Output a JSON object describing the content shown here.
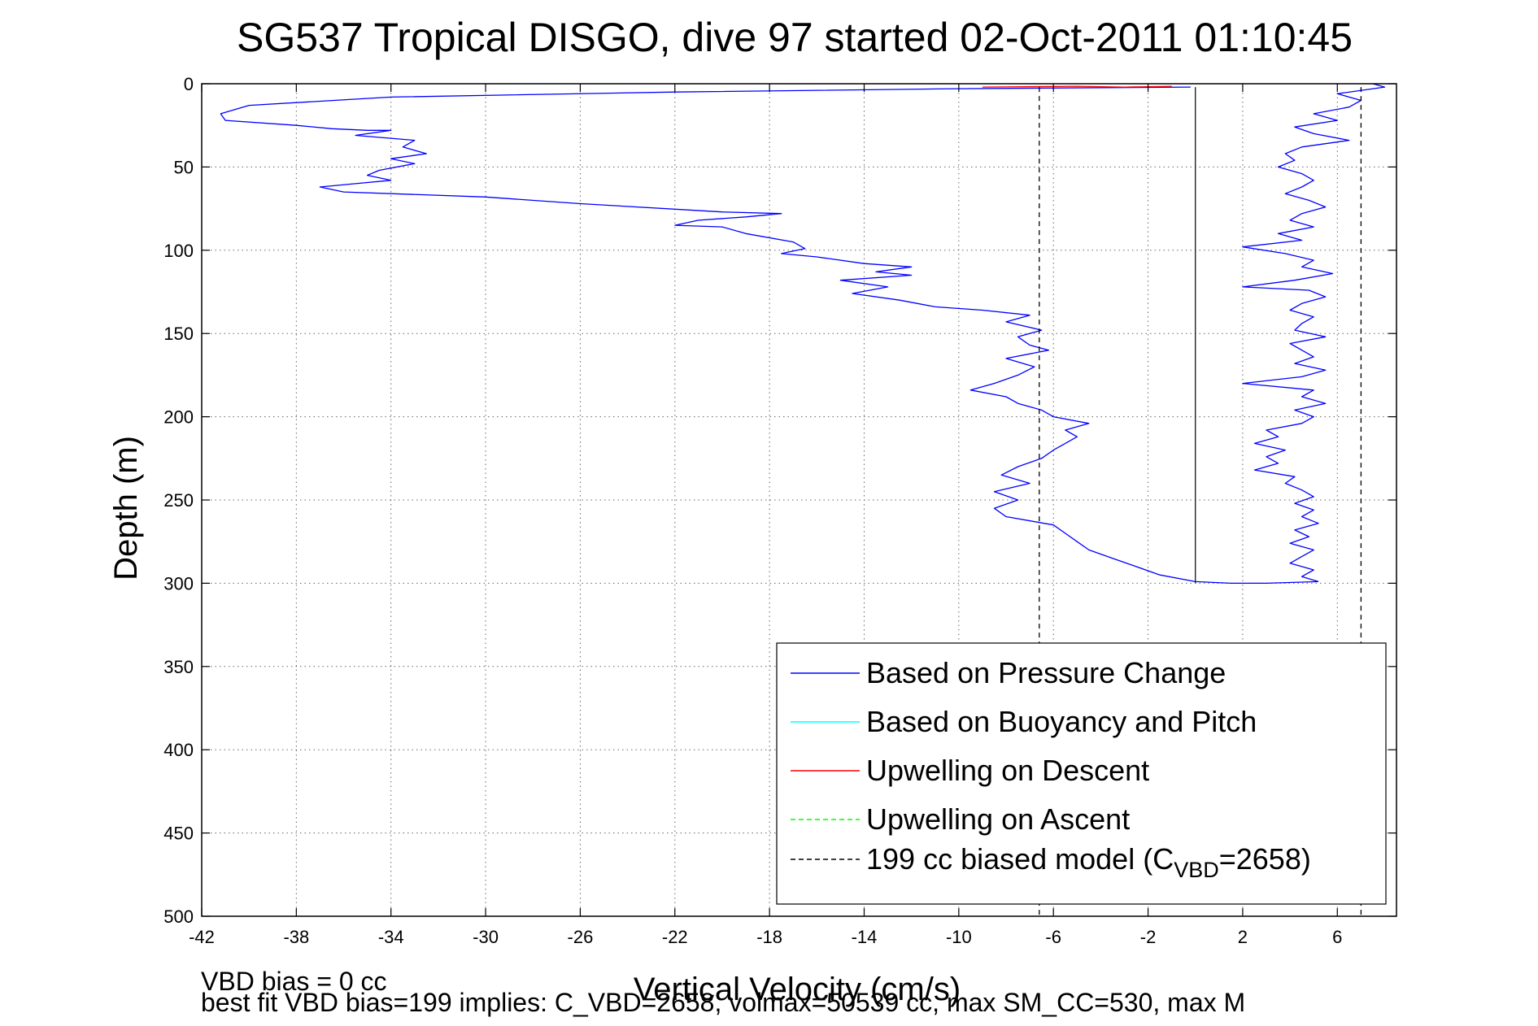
{
  "chart_data": {
    "type": "line",
    "title": "SG537 Tropical DISGO, dive 97 started 02-Oct-2011 01:10:45",
    "xlabel": "Vertical Velocity (cm/s)",
    "ylabel": "Depth (m)",
    "xlim": [
      -42,
      8.5
    ],
    "ylim": [
      500,
      0
    ],
    "y_reversed": true,
    "grid": true,
    "grid_style": "dotted",
    "xticks": [
      -42,
      -38,
      -34,
      -30,
      -26,
      -22,
      -18,
      -14,
      -10,
      -6,
      -2,
      2,
      6
    ],
    "xtick_labels": [
      "-42",
      "-38",
      "-34",
      "-30",
      "-26",
      "-22",
      "-18",
      "-14",
      "-10",
      "-6",
      "-2",
      "2",
      "6"
    ],
    "yticks": [
      0,
      50,
      100,
      150,
      200,
      250,
      300,
      350,
      400,
      450,
      500
    ],
    "ytick_labels": [
      "0",
      "50",
      "100",
      "150",
      "200",
      "250",
      "300",
      "350",
      "400",
      "450",
      "500"
    ],
    "legend_position": "bottom-right",
    "legend": [
      {
        "label": "Based on Pressure Change",
        "color": "#0000ff",
        "style": "solid"
      },
      {
        "label": "Based on Buoyancy and Pitch",
        "color": "#00ffff",
        "style": "solid"
      },
      {
        "label": "Upwelling on Descent",
        "color": "#ff0000",
        "style": "solid"
      },
      {
        "label": "Upwelling on Ascent",
        "color": "#00ff00",
        "style": "dashed"
      },
      {
        "label": "199 cc biased model (C",
        "sub": "VBD",
        "tail": "=2658)",
        "color": "#000000",
        "style": "dashed"
      }
    ],
    "series": [
      {
        "name": "Based on Pressure Change (descent)",
        "color": "#0000ff",
        "points": [
          [
            -0.2,
            2
          ],
          [
            -10,
            3
          ],
          [
            -22,
            5
          ],
          [
            -34,
            8
          ],
          [
            -40,
            13
          ],
          [
            -41.2,
            18
          ],
          [
            -41,
            22
          ],
          [
            -38,
            25
          ],
          [
            -36.5,
            27
          ],
          [
            -35,
            28
          ],
          [
            -34,
            28
          ],
          [
            -35.5,
            31
          ],
          [
            -33,
            34
          ],
          [
            -33.5,
            38
          ],
          [
            -32.5,
            42
          ],
          [
            -34,
            45
          ],
          [
            -33,
            48
          ],
          [
            -34.5,
            52
          ],
          [
            -35,
            55
          ],
          [
            -34,
            58
          ],
          [
            -35.5,
            60
          ],
          [
            -37,
            62
          ],
          [
            -36,
            65
          ],
          [
            -30,
            68
          ],
          [
            -26,
            72
          ],
          [
            -20,
            77
          ],
          [
            -17.5,
            78
          ],
          [
            -19,
            80
          ],
          [
            -21,
            82
          ],
          [
            -22,
            85
          ],
          [
            -20,
            86
          ],
          [
            -19,
            90
          ],
          [
            -17,
            95
          ],
          [
            -16.5,
            99
          ],
          [
            -17.5,
            102
          ],
          [
            -16,
            104
          ],
          [
            -14,
            108
          ],
          [
            -12,
            110
          ],
          [
            -13.5,
            113
          ],
          [
            -12,
            115
          ],
          [
            -15,
            118
          ],
          [
            -13,
            122
          ],
          [
            -14.5,
            126
          ],
          [
            -12.5,
            130
          ],
          [
            -11,
            134
          ],
          [
            -9,
            136
          ],
          [
            -7,
            139
          ],
          [
            -8,
            143
          ],
          [
            -6.5,
            148
          ],
          [
            -7.5,
            152
          ],
          [
            -7,
            157
          ],
          [
            -6.2,
            160
          ],
          [
            -8,
            165
          ],
          [
            -6.8,
            170
          ],
          [
            -7.5,
            175
          ],
          [
            -8.5,
            180
          ],
          [
            -9.5,
            184
          ],
          [
            -8,
            188
          ],
          [
            -7.5,
            192
          ],
          [
            -6.5,
            196
          ],
          [
            -6,
            200
          ],
          [
            -4.5,
            204
          ],
          [
            -5.5,
            208
          ],
          [
            -5,
            212
          ],
          [
            -5.5,
            216
          ],
          [
            -6,
            220
          ],
          [
            -6.5,
            225
          ],
          [
            -7.5,
            230
          ],
          [
            -8.2,
            235
          ],
          [
            -7,
            240
          ],
          [
            -8.5,
            245
          ],
          [
            -7.5,
            250
          ],
          [
            -8.5,
            255
          ],
          [
            -8,
            260
          ],
          [
            -6,
            265
          ],
          [
            -5.5,
            270
          ],
          [
            -5,
            275
          ],
          [
            -4.5,
            280
          ],
          [
            -3.5,
            285
          ],
          [
            -2.5,
            290
          ],
          [
            -1.5,
            295
          ],
          [
            0,
            299
          ],
          [
            1.5,
            300
          ],
          [
            3,
            300
          ],
          [
            5.2,
            299
          ]
        ]
      },
      {
        "name": "Based on Pressure Change (ascent)",
        "color": "#0000ff",
        "points": [
          [
            5.2,
            299
          ],
          [
            4.5,
            296
          ],
          [
            5,
            292
          ],
          [
            4,
            288
          ],
          [
            4.5,
            284
          ],
          [
            5,
            280
          ],
          [
            4,
            276
          ],
          [
            4.8,
            272
          ],
          [
            4.2,
            268
          ],
          [
            5.2,
            264
          ],
          [
            4.5,
            260
          ],
          [
            5,
            256
          ],
          [
            4.2,
            252
          ],
          [
            5,
            248
          ],
          [
            4.5,
            244
          ],
          [
            3.8,
            240
          ],
          [
            4.2,
            236
          ],
          [
            2.5,
            232
          ],
          [
            3.5,
            228
          ],
          [
            3,
            224
          ],
          [
            3.8,
            220
          ],
          [
            2.5,
            216
          ],
          [
            3.5,
            212
          ],
          [
            3,
            208
          ],
          [
            4.5,
            204
          ],
          [
            5,
            200
          ],
          [
            4.2,
            196
          ],
          [
            5.5,
            192
          ],
          [
            4.5,
            188
          ],
          [
            5,
            184
          ],
          [
            2,
            180
          ],
          [
            4.5,
            176
          ],
          [
            5.5,
            172
          ],
          [
            4.2,
            168
          ],
          [
            5,
            164
          ],
          [
            4.5,
            160
          ],
          [
            4,
            156
          ],
          [
            5.5,
            152
          ],
          [
            4.2,
            148
          ],
          [
            4.5,
            144
          ],
          [
            5,
            140
          ],
          [
            4,
            136
          ],
          [
            4.5,
            132
          ],
          [
            5.5,
            128
          ],
          [
            4.8,
            124
          ],
          [
            2,
            122
          ],
          [
            4.2,
            118
          ],
          [
            5.8,
            114
          ],
          [
            4.5,
            110
          ],
          [
            5,
            106
          ],
          [
            3.8,
            102
          ],
          [
            2,
            98
          ],
          [
            4.5,
            94
          ],
          [
            3.5,
            90
          ],
          [
            5,
            86
          ],
          [
            4,
            82
          ],
          [
            4.5,
            78
          ],
          [
            5.5,
            74
          ],
          [
            4.8,
            70
          ],
          [
            3.8,
            66
          ],
          [
            4.5,
            62
          ],
          [
            5,
            58
          ],
          [
            4.5,
            54
          ],
          [
            3.5,
            50
          ],
          [
            4.2,
            46
          ],
          [
            3.8,
            42
          ],
          [
            4.5,
            38
          ],
          [
            6.5,
            34
          ],
          [
            5,
            30
          ],
          [
            4.2,
            26
          ],
          [
            6,
            22
          ],
          [
            5,
            18
          ],
          [
            6.5,
            14
          ],
          [
            7,
            10
          ],
          [
            6,
            6
          ],
          [
            8,
            2
          ],
          [
            7.5,
            0
          ]
        ]
      },
      {
        "name": "Upwelling on Descent",
        "color": "#ff0000",
        "points": [
          [
            -9,
            2
          ],
          [
            -5,
            1.5
          ],
          [
            -3,
            2
          ],
          [
            -1,
            1.5
          ]
        ]
      },
      {
        "name": "199 cc biased model (descent)",
        "color": "#000000",
        "dashed": true,
        "points": [
          [
            -6.6,
            2
          ],
          [
            -6.6,
            500
          ]
        ]
      },
      {
        "name": "199 cc biased model (ascent)",
        "color": "#000000",
        "dashed": true,
        "points": [
          [
            7,
            2
          ],
          [
            7,
            500
          ]
        ]
      }
    ],
    "zero_line": {
      "x": 0,
      "ymin": 2,
      "ymax": 300,
      "color": "#000000"
    }
  },
  "footnotes": {
    "vbd_bias": "VBD bias = 0 cc",
    "best_fit": "best fit VBD bias=199 implies: C_VBD=2658, volmax=50539 cc, max SM_CC=530, max M"
  }
}
